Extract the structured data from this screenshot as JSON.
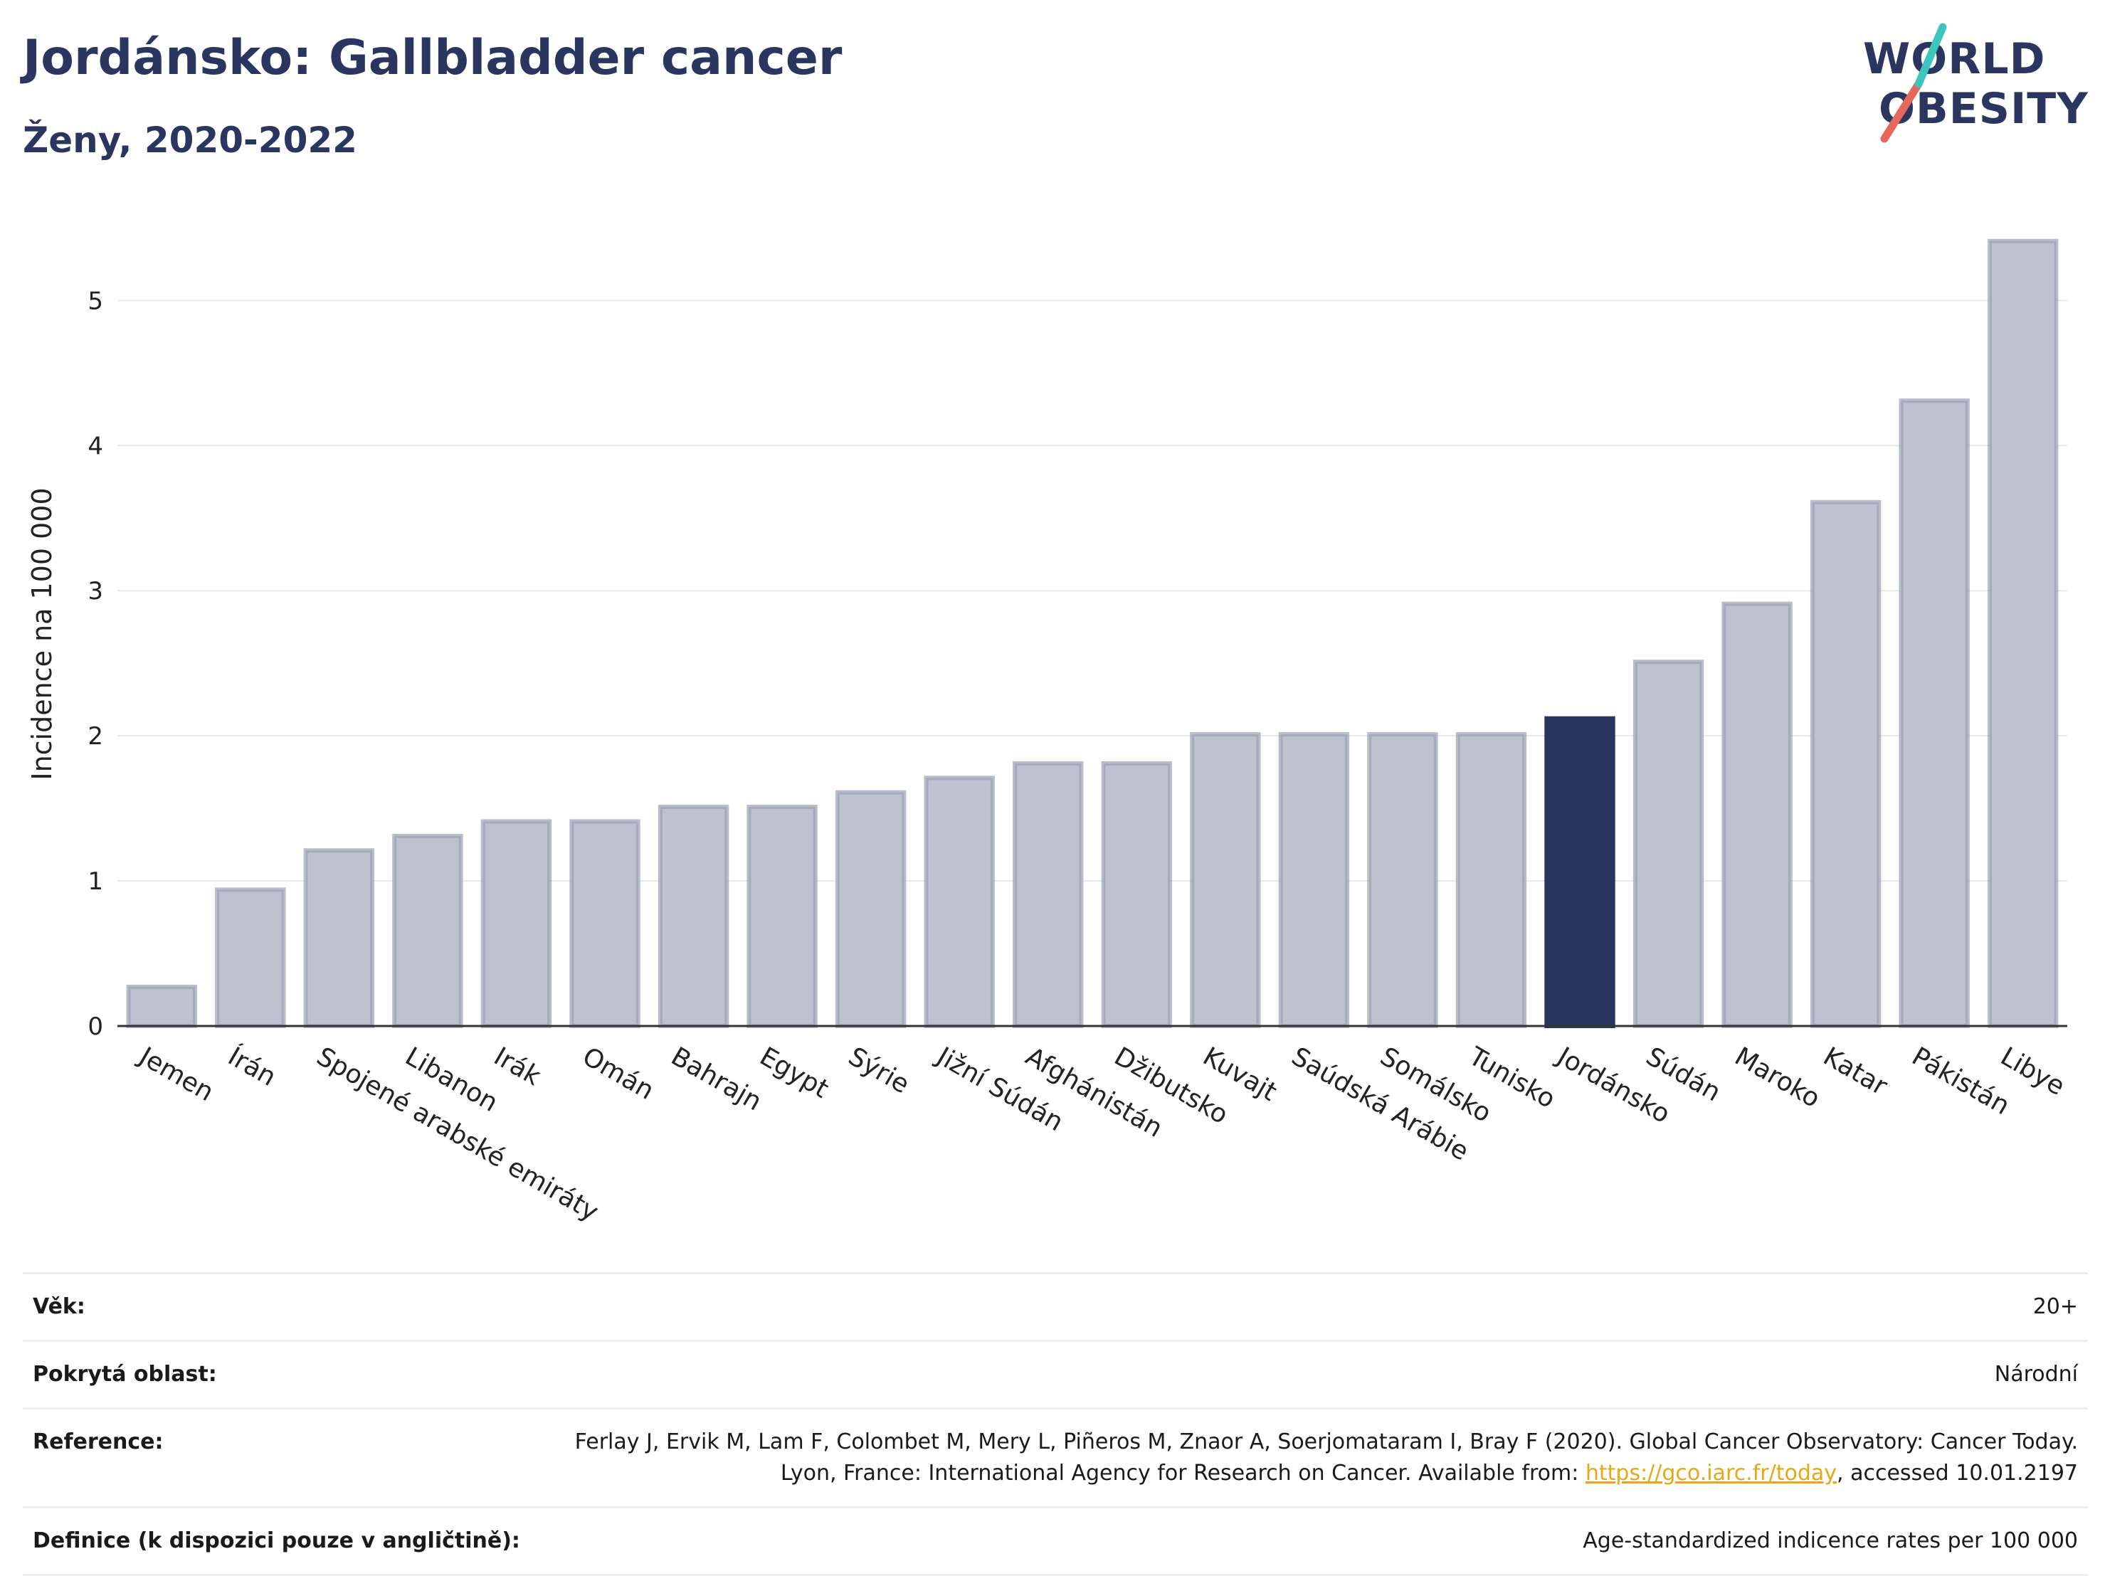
{
  "title": "Jordánsko: Gallbladder cancer",
  "subtitle": "Ženy, 2020-2022",
  "logo": {
    "line1": "WORLD",
    "line2": "OBESITY"
  },
  "colors": {
    "highlight_bar": "#2a3560",
    "other_bar": "#bfc2ce",
    "other_bar_border": "#9aa0b5",
    "title": "#2a3560",
    "link": "#e6a817",
    "logo_teal": "#3ec5be",
    "logo_coral": "#e8675b"
  },
  "chart_data": {
    "type": "bar",
    "ylabel": "Incidence na 100 000",
    "ylim": [
      0,
      5.6
    ],
    "yticks": [
      0,
      1,
      2,
      3,
      4,
      5
    ],
    "grid": true,
    "highlight": "Jordánsko",
    "categories": [
      "Jemen",
      "Írán",
      "Spojené arabské emiráty",
      "Libanon",
      "Irák",
      "Omán",
      "Bahrajn",
      "Egypt",
      "Sýrie",
      "Jižní Súdán",
      "Afghánistán",
      "Džibutsko",
      "Kuvajt",
      "Saúdská Arábie",
      "Somálsko",
      "Tunisko",
      "Jordánsko",
      "Súdán",
      "Maroko",
      "Katar",
      "Pákistán",
      "Libye"
    ],
    "values": [
      0.27,
      0.94,
      1.21,
      1.31,
      1.41,
      1.41,
      1.51,
      1.51,
      1.61,
      1.71,
      1.81,
      1.81,
      2.01,
      2.01,
      2.01,
      2.01,
      2.12,
      2.51,
      2.91,
      3.61,
      4.31,
      5.41
    ]
  },
  "info": {
    "age_label": "Věk:",
    "age_value": "20+",
    "coverage_label": "Pokrytá oblast:",
    "coverage_value": "Národní",
    "reference_label": "Reference:",
    "reference_text_1": "Ferlay J, Ervik M, Lam F, Colombet M, Mery L, Piñeros M, Znaor A, Soerjomataram I, Bray F (2020). Global Cancer Observatory: Cancer Today. Lyon, France: International Agency for Research on Cancer. Available from: ",
    "reference_link": "https://gco.iarc.fr/today",
    "reference_text_2": ", accessed 10.01.2197",
    "definition_label": "Definice (k dispozici pouze v angličtině):",
    "definition_value": "Age-standardized indicence rates per 100 000"
  }
}
